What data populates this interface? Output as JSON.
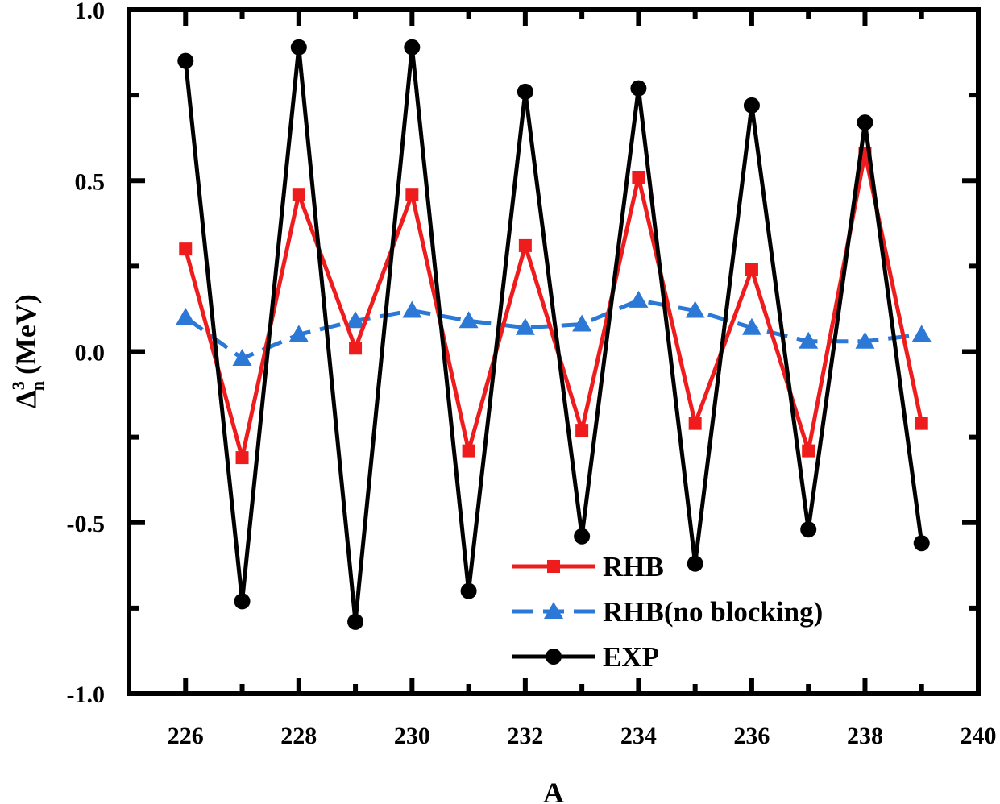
{
  "chart_data": {
    "type": "line",
    "xlabel": "A",
    "ylabel": {
      "main": "Δ",
      "sup": "3",
      "sub": "n",
      "unit": "(MeV)"
    },
    "xlim": [
      225,
      240
    ],
    "ylim": [
      -1.0,
      1.0
    ],
    "x_ticks": [
      226,
      228,
      230,
      232,
      234,
      236,
      238,
      240
    ],
    "x_tick_labels": [
      "226",
      "228",
      "230",
      "232",
      "234",
      "236",
      "238",
      "240"
    ],
    "y_ticks": [
      -1.0,
      -0.5,
      0.0,
      0.5,
      1.0
    ],
    "y_tick_labels": [
      "-1.0",
      "-0.5",
      "0.0",
      "0.5",
      "1.0"
    ],
    "grid": false,
    "legend_position": "bottom-right",
    "x": [
      226,
      227,
      228,
      229,
      230,
      231,
      232,
      233,
      234,
      235,
      236,
      237,
      238,
      239
    ],
    "series": [
      {
        "name": "RHB",
        "color": "#ee1c1c",
        "marker": "square",
        "dash": "solid",
        "values": [
          0.3,
          -0.31,
          0.46,
          0.01,
          0.46,
          -0.29,
          0.31,
          -0.23,
          0.51,
          -0.21,
          0.24,
          -0.29,
          0.58,
          -0.21
        ]
      },
      {
        "name": "RHB(no blocking)",
        "color": "#2b78d6",
        "marker": "triangle",
        "dash": "dashed",
        "values": [
          0.1,
          -0.02,
          0.05,
          0.09,
          0.12,
          0.09,
          0.07,
          0.08,
          0.15,
          0.12,
          0.07,
          0.03,
          0.03,
          0.05
        ]
      },
      {
        "name": "EXP",
        "color": "#000000",
        "marker": "circle",
        "dash": "solid",
        "values": [
          0.85,
          -0.73,
          0.89,
          -0.79,
          0.89,
          -0.7,
          0.76,
          -0.54,
          0.77,
          -0.62,
          0.72,
          -0.52,
          0.67,
          -0.56
        ]
      }
    ]
  }
}
